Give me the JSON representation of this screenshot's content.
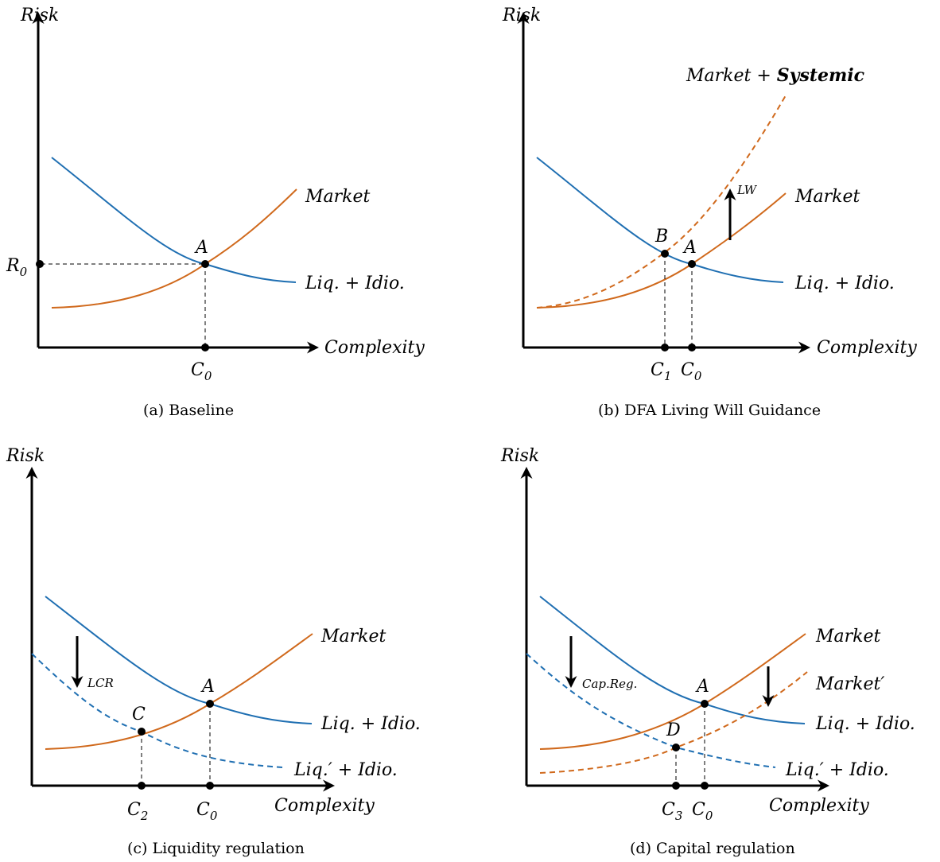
{
  "axes": {
    "y_label": "Risk",
    "x_label": "Complexity"
  },
  "curves": {
    "market": "Market",
    "market_systemic_prefix": "Market + ",
    "market_systemic_bold": "Systemic",
    "liq_idio": "Liq. + Idio.",
    "liq_prime_idio": "Liq.′ + Idio.",
    "market_prime": "Market′"
  },
  "points": {
    "A": "A",
    "B": "B",
    "C": "C",
    "D": "D"
  },
  "ticks": {
    "R0_base": "R",
    "R0_sub": "0",
    "C_base": "C",
    "C0_sub": "0",
    "C1_sub": "1",
    "C2_sub": "2",
    "C3_sub": "3"
  },
  "shifts": {
    "lw": "LW",
    "lcr": "LCR",
    "cap_reg": "Cap.Reg."
  },
  "captions": {
    "a": "(a) Baseline",
    "b": "(b) DFA Living Will Guidance",
    "c": "(c) Liquidity regulation",
    "d": "(d) Capital regulation"
  },
  "colors": {
    "liquidity_curve": "#1f6fb2",
    "market_curve": "#d0691c",
    "axes": "#000000"
  }
}
